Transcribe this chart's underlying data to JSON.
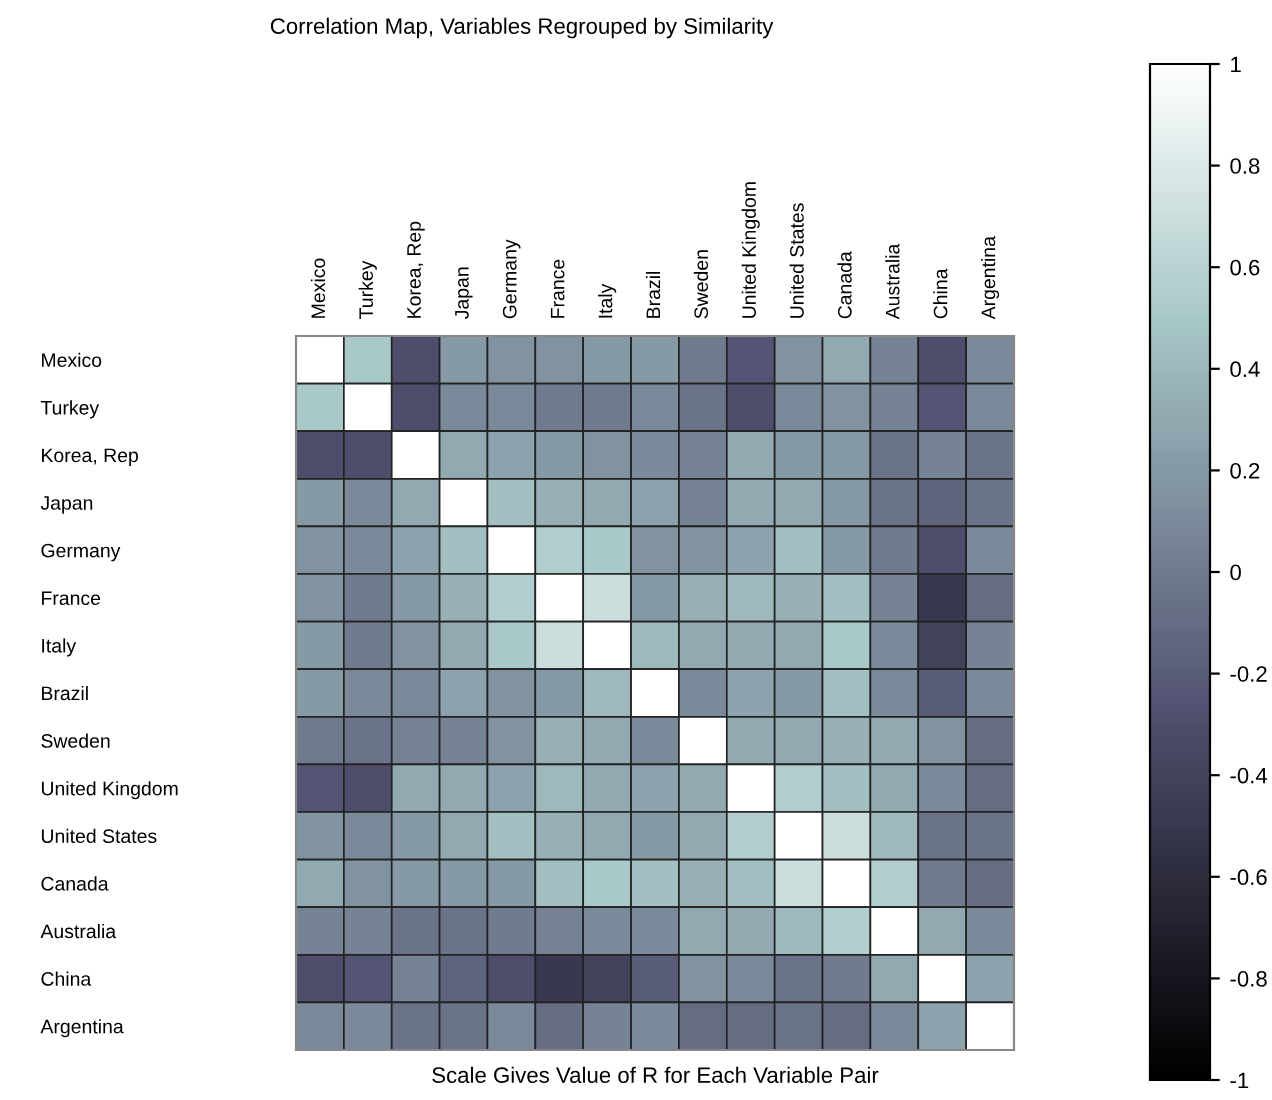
{
  "chart_data": {
    "type": "heatmap",
    "title": "Correlation Map, Variables Regrouped by Similarity",
    "xlabel": "Scale Gives Value of R for Each Variable Pair",
    "categories": [
      "Mexico",
      "Turkey",
      "Korea, Rep",
      "Japan",
      "Germany",
      "France",
      "Italy",
      "Brazil",
      "Sweden",
      "United Kingdom",
      "United States",
      "Canada",
      "Australia",
      "China",
      "Argentina"
    ],
    "y_categories": [
      "Mexico",
      "Turkey",
      "Korea, Rep",
      "Japan",
      "Germany",
      "France",
      "Italy",
      "Brazil",
      "Sweden",
      "United Kingdom",
      "United States",
      "Canada",
      "Australia",
      "China",
      "Argentina"
    ],
    "cells": [
      [
        1,
        0.5,
        -0.3,
        0.2,
        0.15,
        0.15,
        0.2,
        0.2,
        0.0,
        -0.25,
        0.15,
        0.3,
        0.05,
        -0.3,
        0.1
      ],
      [
        0.5,
        1,
        -0.3,
        0.1,
        0.1,
        0.0,
        0.0,
        0.1,
        -0.05,
        -0.3,
        0.1,
        0.15,
        0.05,
        -0.25,
        0.1
      ],
      [
        -0.3,
        -0.3,
        1,
        0.3,
        0.25,
        0.2,
        0.15,
        0.1,
        0.05,
        0.3,
        0.2,
        0.2,
        -0.05,
        0.05,
        -0.05
      ],
      [
        0.2,
        0.1,
        0.3,
        1,
        0.45,
        0.35,
        0.3,
        0.25,
        0.05,
        0.3,
        0.3,
        0.2,
        -0.05,
        -0.15,
        -0.05
      ],
      [
        0.15,
        0.1,
        0.25,
        0.45,
        1,
        0.55,
        0.5,
        0.15,
        0.15,
        0.25,
        0.45,
        0.2,
        0.0,
        -0.3,
        0.1
      ],
      [
        0.15,
        0.0,
        0.2,
        0.35,
        0.55,
        1,
        0.7,
        0.2,
        0.35,
        0.4,
        0.35,
        0.45,
        0.05,
        -0.5,
        -0.1
      ],
      [
        0.2,
        0.0,
        0.15,
        0.3,
        0.5,
        0.7,
        1,
        0.4,
        0.3,
        0.3,
        0.3,
        0.5,
        0.1,
        -0.4,
        0.05
      ],
      [
        0.2,
        0.1,
        0.1,
        0.25,
        0.15,
        0.2,
        0.4,
        1,
        0.1,
        0.25,
        0.2,
        0.45,
        0.1,
        -0.2,
        0.1
      ],
      [
        0.0,
        -0.05,
        0.05,
        0.05,
        0.15,
        0.35,
        0.3,
        0.1,
        1,
        0.3,
        0.3,
        0.35,
        0.3,
        0.15,
        -0.1
      ],
      [
        -0.25,
        -0.3,
        0.3,
        0.3,
        0.25,
        0.4,
        0.3,
        0.25,
        0.3,
        1,
        0.55,
        0.45,
        0.3,
        0.1,
        -0.1
      ],
      [
        0.15,
        0.1,
        0.2,
        0.3,
        0.45,
        0.35,
        0.3,
        0.2,
        0.3,
        0.55,
        1,
        0.7,
        0.4,
        -0.05,
        -0.05
      ],
      [
        0.3,
        0.15,
        0.2,
        0.2,
        0.2,
        0.45,
        0.5,
        0.45,
        0.35,
        0.45,
        0.7,
        1,
        0.55,
        0.0,
        -0.1
      ],
      [
        0.05,
        0.05,
        -0.05,
        -0.05,
        0.0,
        0.05,
        0.1,
        0.1,
        0.3,
        0.3,
        0.4,
        0.55,
        1,
        0.3,
        0.1
      ],
      [
        -0.3,
        -0.25,
        0.05,
        -0.15,
        -0.3,
        -0.5,
        -0.4,
        -0.2,
        0.15,
        0.1,
        -0.05,
        0.0,
        0.3,
        1,
        0.25
      ],
      [
        0.1,
        0.1,
        -0.05,
        -0.05,
        0.1,
        -0.1,
        0.05,
        0.1,
        -0.1,
        -0.1,
        -0.05,
        -0.1,
        0.1,
        0.25,
        1
      ]
    ],
    "clim": [
      -1,
      1
    ],
    "cticks": [
      -1,
      -0.8,
      -0.6,
      -0.4,
      -0.2,
      0,
      0.2,
      0.4,
      0.6,
      0.8,
      1
    ]
  }
}
